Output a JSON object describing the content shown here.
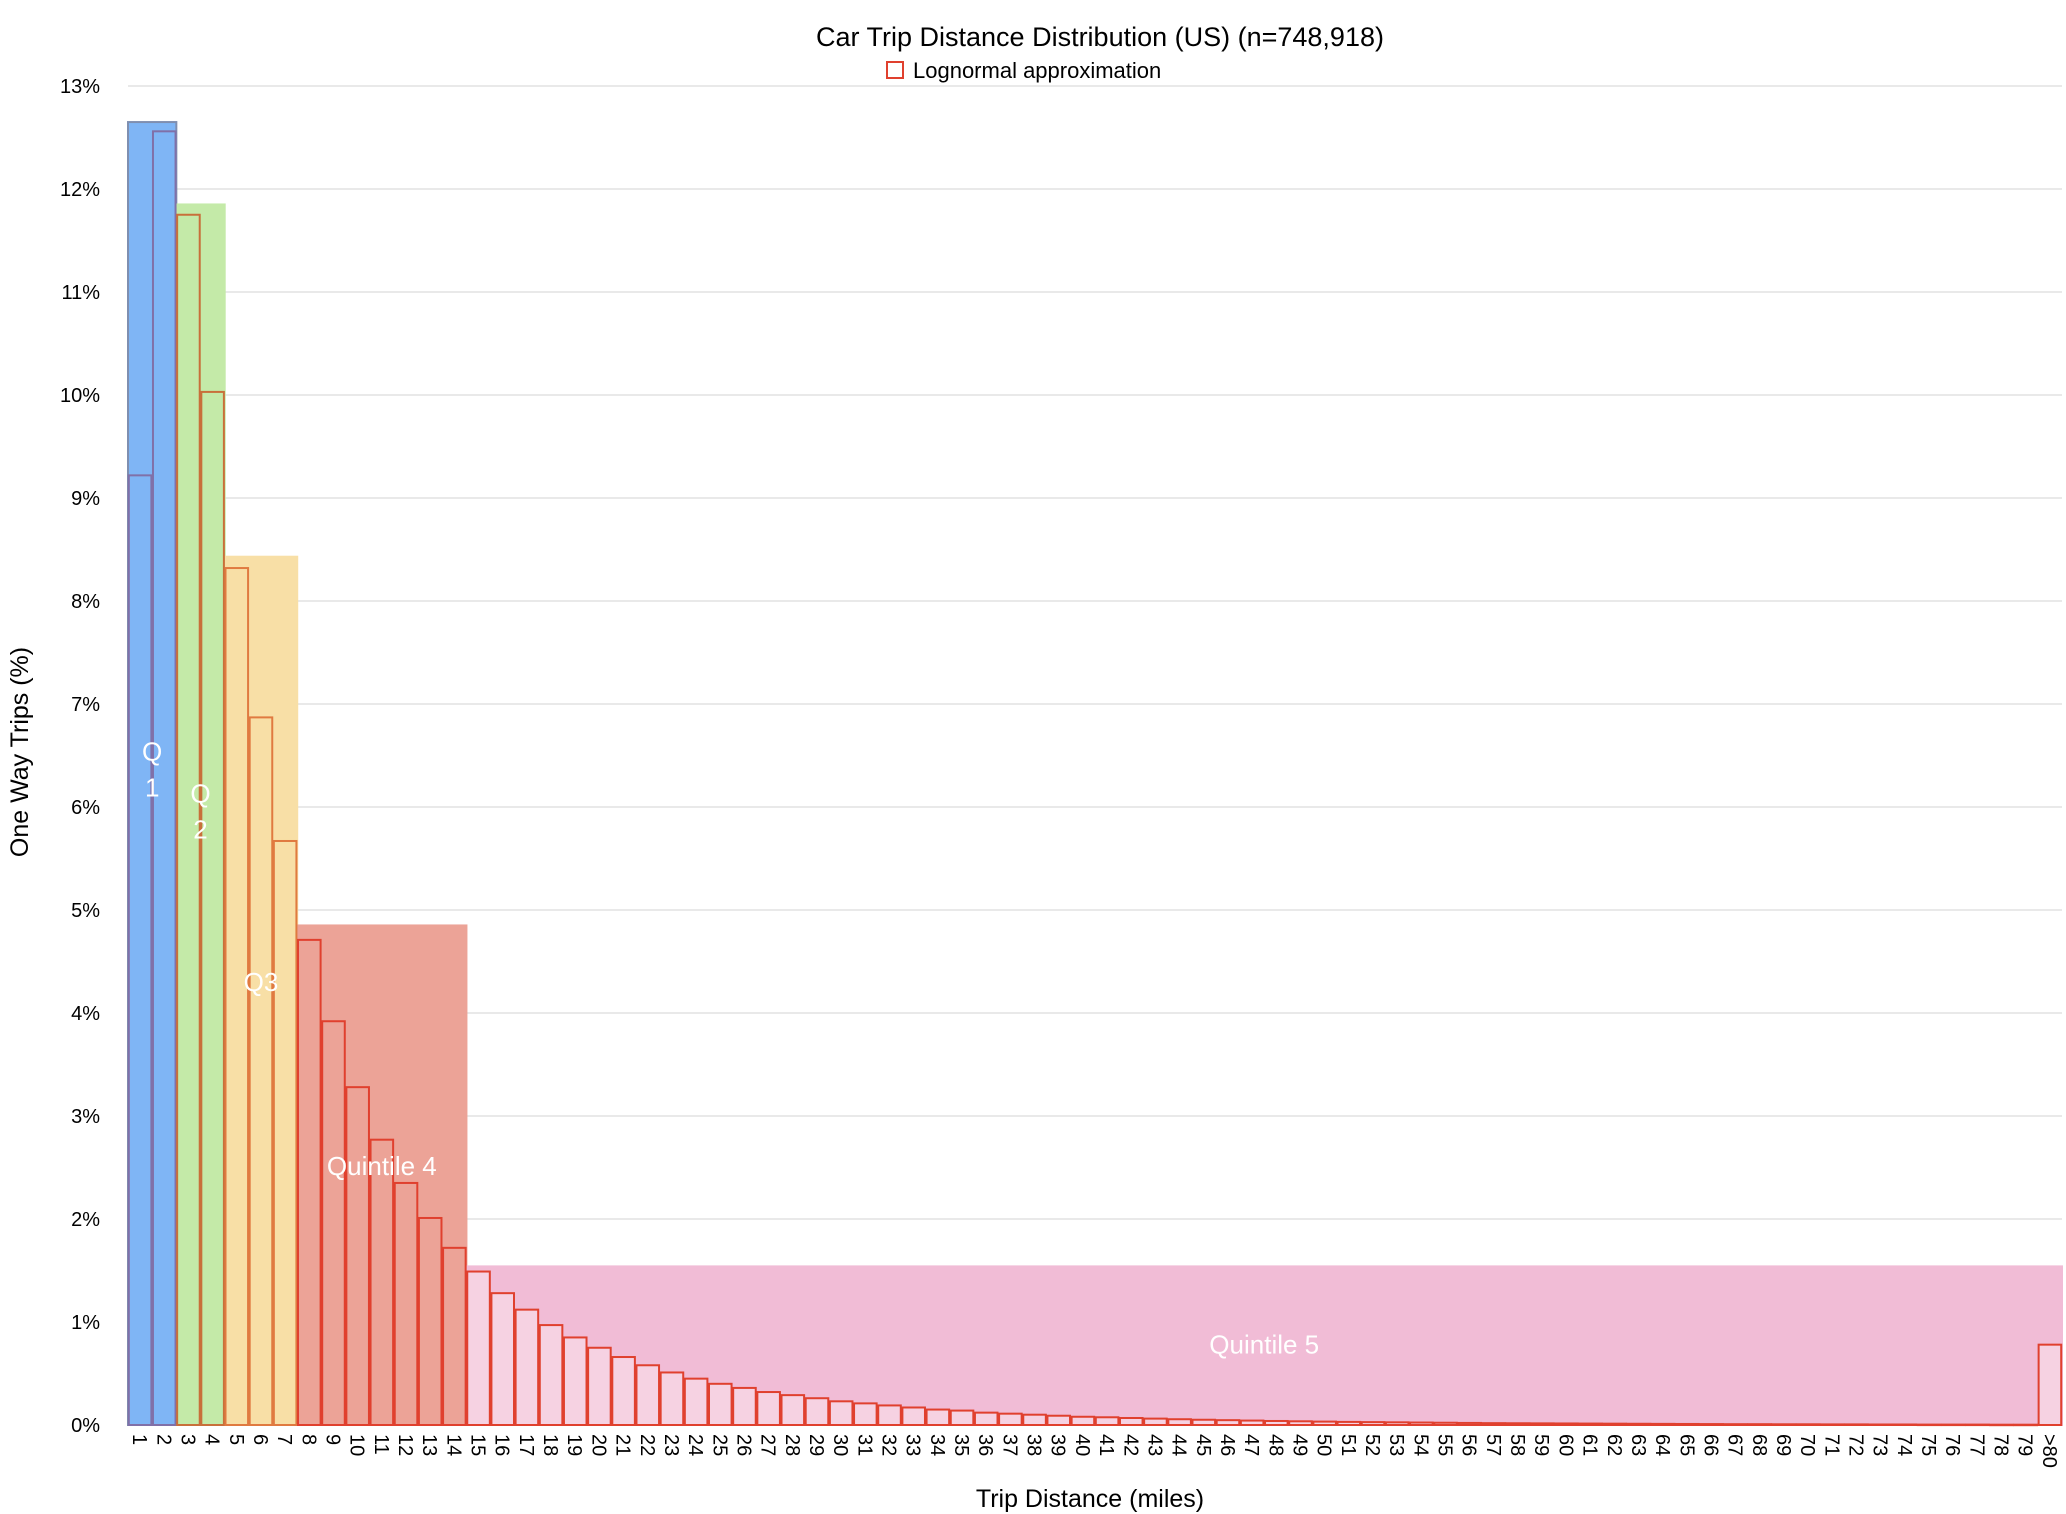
{
  "chart_data": {
    "type": "bar",
    "title": "Car Trip Distance Distribution (US) (n=748,918)",
    "xlabel": "Trip Distance (miles)",
    "ylabel": "One Way Trips (%)",
    "ylim": [
      0,
      13
    ],
    "yticks": [
      "0%",
      "1%",
      "2%",
      "3%",
      "4%",
      "5%",
      "6%",
      "7%",
      "8%",
      "9%",
      "10%",
      "11%",
      "12%",
      "13%"
    ],
    "grid": true,
    "legend_position": "top-center",
    "categories": [
      "1",
      "2",
      "3",
      "4",
      "5",
      "6",
      "7",
      "8",
      "9",
      "10",
      "11",
      "12",
      "13",
      "14",
      "15",
      "16",
      "17",
      "18",
      "19",
      "20",
      "21",
      "22",
      "23",
      "24",
      "25",
      "26",
      "27",
      "28",
      "29",
      "30",
      "31",
      "32",
      "33",
      "34",
      "35",
      "36",
      "37",
      "38",
      "39",
      "40",
      "41",
      "42",
      "43",
      "44",
      "45",
      "46",
      "47",
      "48",
      "49",
      "50",
      "51",
      "52",
      "53",
      "54",
      "55",
      "56",
      "57",
      "58",
      "59",
      "60",
      "61",
      "62",
      "63",
      "64",
      "65",
      "66",
      "67",
      "68",
      "69",
      "70",
      "71",
      "72",
      "73",
      "74",
      "75",
      "76",
      "77",
      "78",
      "79",
      ">80"
    ],
    "series": [
      {
        "name": "Lognormal approximation",
        "color": "#e0402e",
        "values": [
          9.22,
          12.56,
          11.75,
          10.03,
          8.32,
          6.87,
          5.67,
          4.71,
          3.92,
          3.28,
          2.77,
          2.35,
          2.01,
          1.72,
          1.49,
          1.28,
          1.12,
          0.97,
          0.85,
          0.75,
          0.66,
          0.58,
          0.51,
          0.45,
          0.4,
          0.36,
          0.32,
          0.29,
          0.26,
          0.23,
          0.21,
          0.19,
          0.17,
          0.15,
          0.14,
          0.12,
          0.11,
          0.1,
          0.09,
          0.08,
          0.075,
          0.068,
          0.062,
          0.056,
          0.051,
          0.047,
          0.043,
          0.039,
          0.036,
          0.033,
          0.03,
          0.028,
          0.026,
          0.024,
          0.022,
          0.02,
          0.018,
          0.017,
          0.016,
          0.015,
          0.014,
          0.013,
          0.012,
          0.011,
          0.01,
          0.009,
          0.008,
          0.008,
          0.007,
          0.007,
          0.006,
          0.006,
          0.005,
          0.005,
          0.004,
          0.004,
          0.004,
          0.003,
          0.003,
          0.78
        ]
      }
    ],
    "quintiles": [
      {
        "label_lines": [
          "Q",
          "1"
        ],
        "from": "1",
        "to": "2",
        "value": 12.65,
        "color": "#7fb5f5",
        "edge": "#7f8fb0"
      },
      {
        "label_lines": [
          "Q",
          "2"
        ],
        "from": "3",
        "to": "4",
        "value": 11.85,
        "color": "#c4eaa8",
        "edge": "#c4eaa8"
      },
      {
        "label_lines": [
          "Q3"
        ],
        "from": "5",
        "to": "7",
        "value": 8.43,
        "color": "#f8dfa6",
        "edge": "#f8dfa6"
      },
      {
        "label_lines": [
          "Quintile 4"
        ],
        "from": "8",
        "to": "14",
        "value": 4.85,
        "color": "#eca397",
        "edge": "#eca397"
      },
      {
        "label_lines": [
          "Quintile 5"
        ],
        "from": "15",
        "to": ">80",
        "value": 1.54,
        "color": "#f1bcd6",
        "edge": "#f1bcd6"
      }
    ]
  }
}
